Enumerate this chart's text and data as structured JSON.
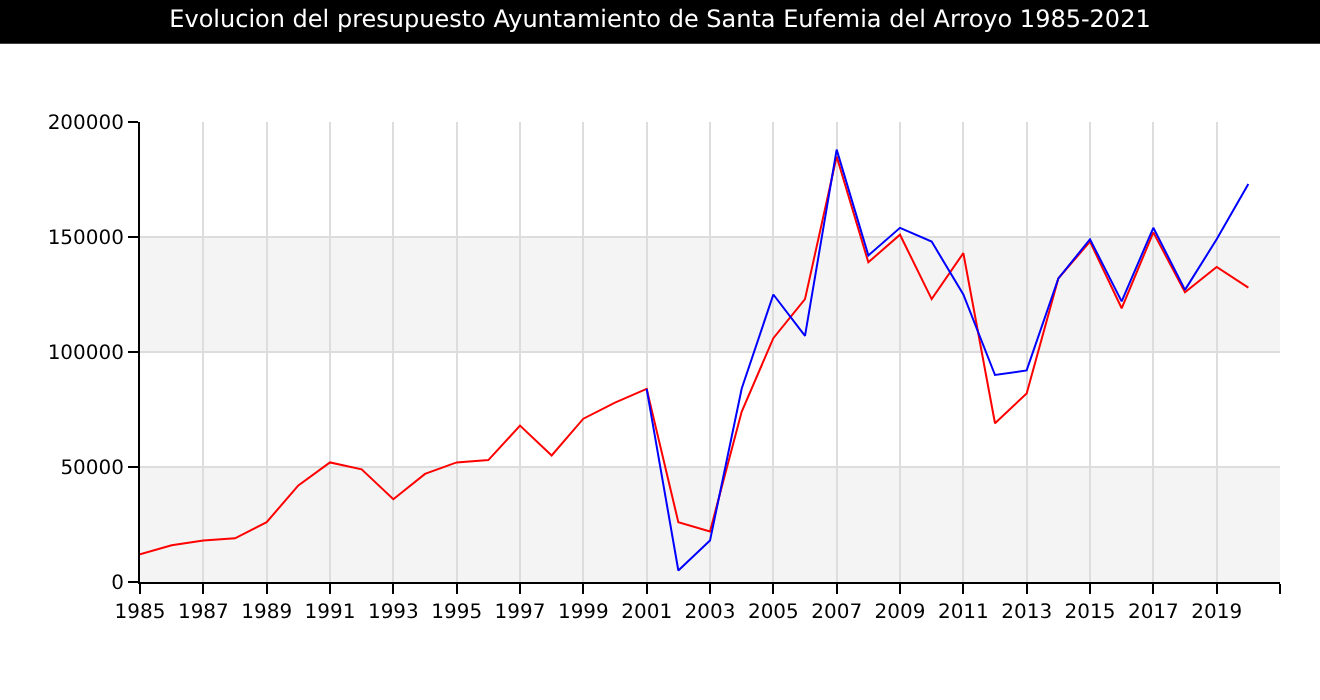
{
  "chart_data": {
    "type": "line",
    "title": "Evolucion del presupuesto Ayuntamiento de Santa Eufemia del Arroyo 1985-2021",
    "series": [
      {
        "color": "#ff0000",
        "x": [
          1985,
          1986,
          1987,
          1988,
          1989,
          1990,
          1991,
          1992,
          1993,
          1994,
          1995,
          1996,
          1997,
          1998,
          1999,
          2000,
          2001,
          2002,
          2003,
          2004,
          2005,
          2006,
          2007,
          2008,
          2009,
          2010,
          2011,
          2012,
          2013,
          2014,
          2015,
          2016,
          2017,
          2018,
          2019,
          2020
        ],
        "values": [
          12000,
          16000,
          18000,
          19000,
          26000,
          42000,
          52000,
          49000,
          36000,
          47000,
          52000,
          53000,
          68000,
          55000,
          71000,
          78000,
          84000,
          26000,
          22000,
          74000,
          106000,
          123000,
          185000,
          139000,
          151000,
          123000,
          143000,
          69000,
          82000,
          132000,
          148000,
          119000,
          152000,
          126000,
          137000,
          128000
        ]
      },
      {
        "color": "#0000ff",
        "x": [
          2001,
          2002,
          2003,
          2004,
          2005,
          2006,
          2007,
          2008,
          2009,
          2010,
          2011,
          2012,
          2013,
          2014,
          2015,
          2016,
          2017,
          2018,
          2019,
          2020
        ],
        "values": [
          84000,
          5000,
          18000,
          84000,
          125000,
          107000,
          188000,
          142000,
          154000,
          148000,
          125000,
          90000,
          92000,
          132000,
          149000,
          122000,
          154000,
          127000,
          149000,
          173000
        ]
      }
    ],
    "xlim": [
      1985,
      2021
    ],
    "xticks": [
      1985,
      1987,
      1989,
      1991,
      1993,
      1995,
      1997,
      1999,
      2001,
      2003,
      2005,
      2007,
      2009,
      2011,
      2013,
      2015,
      2017,
      2019,
      {
        "value": 2021,
        "label": null
      }
    ],
    "ylim": [
      0,
      200000
    ],
    "yticks": [
      0,
      50000,
      100000,
      150000,
      200000
    ],
    "bands": [
      {
        "axis": "y",
        "from": 0,
        "to": 50000,
        "color": "#f4f4f4"
      },
      {
        "axis": "y",
        "from": 100000,
        "to": 150000,
        "color": "#f4f4f4"
      }
    ],
    "grid": true,
    "marker": "none",
    "line_style": "solid"
  }
}
